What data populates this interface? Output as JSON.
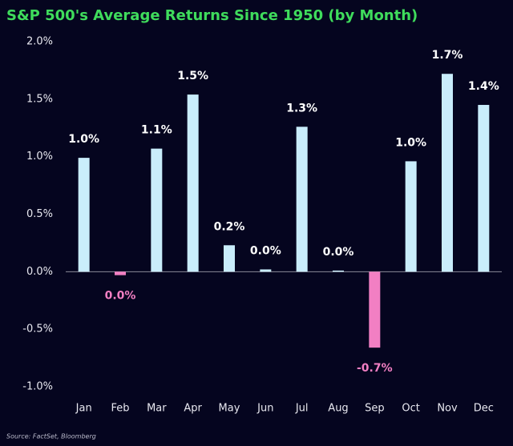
{
  "chart_data": {
    "type": "bar",
    "title": "S&P 500's Average Returns Since 1950 (by Month)",
    "source": "Source: FactSet, Bloomberg",
    "categories": [
      "Jan",
      "Feb",
      "Mar",
      "Apr",
      "May",
      "Jun",
      "Jul",
      "Aug",
      "Sep",
      "Oct",
      "Nov",
      "Dec"
    ],
    "values": [
      0.99,
      -0.03,
      1.07,
      1.54,
      0.23,
      0.02,
      1.26,
      0.01,
      -0.66,
      0.96,
      1.72,
      1.45
    ],
    "value_labels": [
      "1.0%",
      "0.0%",
      "1.1%",
      "1.5%",
      "0.2%",
      "0.0%",
      "1.3%",
      "0.0%",
      "-0.7%",
      "1.0%",
      "1.7%",
      "1.4%"
    ],
    "color": "#c9edfb",
    "negative_color": "#f27fc3",
    "ylim": [
      -1.0,
      2.0
    ],
    "yticks": [
      {
        "value": -1.0,
        "label": "-1.0%"
      },
      {
        "value": -0.5,
        "label": "-0.5%"
      },
      {
        "value": 0,
        "label": "0.0%"
      },
      {
        "value": 0.5,
        "label": "0.5%"
      },
      {
        "value": 1.0,
        "label": "1.0%"
      },
      {
        "value": 1.5,
        "label": "1.5%"
      },
      {
        "value": 2.0,
        "label": "2.0%"
      }
    ],
    "grid": false
  }
}
